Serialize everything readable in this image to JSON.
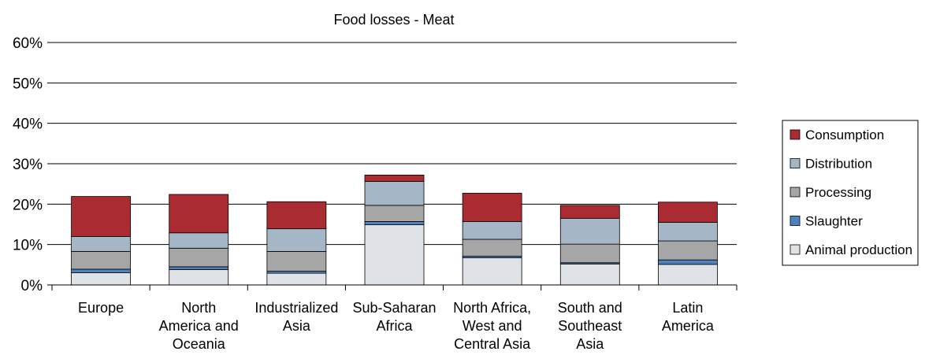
{
  "chart_data": {
    "type": "bar",
    "stacked": true,
    "title": "Food losses - Meat",
    "xlabel": "",
    "ylabel": "",
    "ylim": [
      0,
      60
    ],
    "yticks": [
      "0%",
      "10%",
      "20%",
      "30%",
      "40%",
      "50%",
      "60%"
    ],
    "grid": true,
    "legend_position": "right",
    "categories": [
      [
        "Europe"
      ],
      [
        "North",
        "America and",
        "Oceania"
      ],
      [
        "Industrialized",
        "Asia"
      ],
      [
        "Sub-Saharan",
        "Africa"
      ],
      [
        "North Africa,",
        "West and",
        "Central Asia"
      ],
      [
        "South and",
        "Southeast",
        "Asia"
      ],
      [
        "Latin",
        "America"
      ]
    ],
    "series": [
      {
        "name": "Animal production",
        "color": "#dfe3e7",
        "values": [
          3.0,
          3.8,
          2.9,
          14.9,
          6.7,
          5.2,
          5.1
        ]
      },
      {
        "name": "Slaughter",
        "color": "#4f81bd",
        "values": [
          0.9,
          0.7,
          0.5,
          0.8,
          0.4,
          0.3,
          1.1
        ]
      },
      {
        "name": "Processing",
        "color": "#a6a6a6",
        "values": [
          4.4,
          4.6,
          4.9,
          4.0,
          4.2,
          4.6,
          4.7
        ]
      },
      {
        "name": "Distribution",
        "color": "#a5b7c6",
        "values": [
          3.7,
          3.8,
          5.6,
          5.9,
          4.4,
          6.4,
          4.6
        ]
      },
      {
        "name": "Consumption",
        "color": "#ab2b33",
        "values": [
          9.9,
          9.5,
          6.7,
          1.6,
          7.0,
          3.2,
          5.0
        ]
      }
    ],
    "legend_order": [
      "Consumption",
      "Distribution",
      "Processing",
      "Slaughter",
      "Animal production"
    ]
  }
}
